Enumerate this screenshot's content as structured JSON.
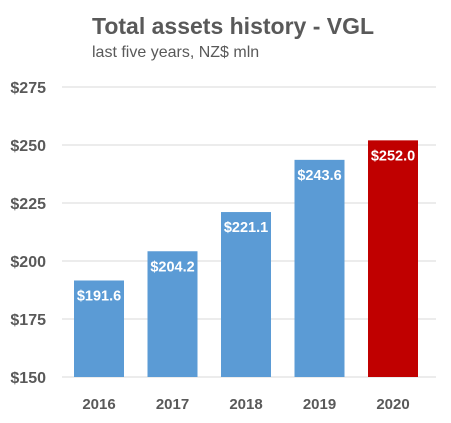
{
  "chart_data": {
    "type": "bar",
    "title": "Total assets history - VGL",
    "subtitle": "last five years, NZ$ mln",
    "categories": [
      "2016",
      "2017",
      "2018",
      "2019",
      "2020"
    ],
    "values": [
      191.6,
      204.2,
      221.1,
      243.6,
      252.0
    ],
    "data_labels": [
      "$191.6",
      "$204.2",
      "$221.1",
      "$243.6",
      "$252.0"
    ],
    "bar_colors": [
      "#5b9bd5",
      "#5b9bd5",
      "#5b9bd5",
      "#5b9bd5",
      "#c00000"
    ],
    "ylim": [
      150,
      275
    ],
    "yticks": [
      150,
      175,
      200,
      225,
      250,
      275
    ],
    "ytick_labels": [
      "$150",
      "$175",
      "$200",
      "$225",
      "$250",
      "$275"
    ],
    "xlabel": "",
    "ylabel": "",
    "grid": true,
    "legend": "none"
  },
  "colors": {
    "bar": "#5b9bd5",
    "highlight": "#c00000",
    "grid": "#d9d9d9",
    "text": "#595959",
    "label_text": "#ffffff"
  }
}
